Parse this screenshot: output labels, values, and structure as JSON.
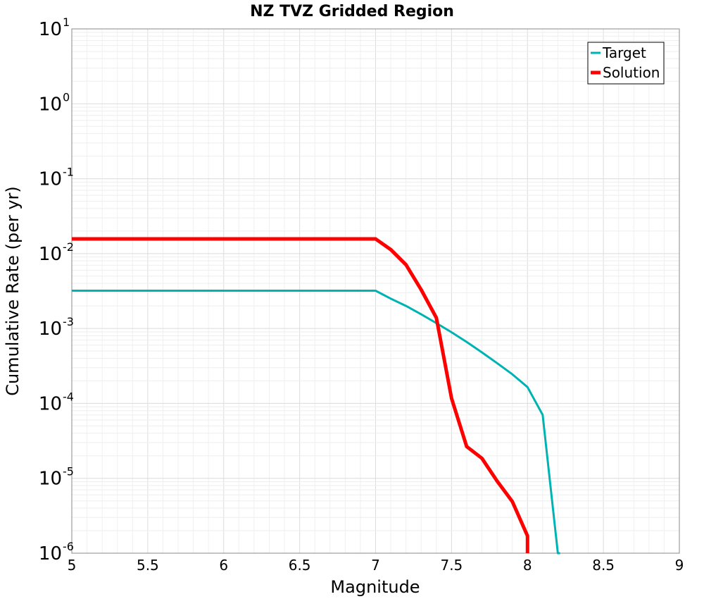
{
  "chart_data": {
    "type": "line",
    "title": "NZ TVZ Gridded Region",
    "xlabel": "Magnitude",
    "ylabel": "Cumulative Rate (per yr)",
    "xlim": [
      5,
      9
    ],
    "ylim_log10": [
      -6,
      1
    ],
    "yscale": "log",
    "grid": true,
    "legend_position": "top-right",
    "x_ticks": [
      5,
      5.5,
      6,
      6.5,
      7,
      7.5,
      8,
      8.5,
      9
    ],
    "x_tick_labels": [
      "5",
      "5.5",
      "6",
      "6.5",
      "7",
      "7.5",
      "8",
      "8.5",
      "9"
    ],
    "y_ticks": [
      {
        "base": "10",
        "exp": "1",
        "value": 10
      },
      {
        "base": "10",
        "exp": "0",
        "value": 1
      },
      {
        "base": "10",
        "exp": "-1",
        "value": 0.1
      },
      {
        "base": "10",
        "exp": "-2",
        "value": 0.01
      },
      {
        "base": "10",
        "exp": "-3",
        "value": 0.001
      },
      {
        "base": "10",
        "exp": "-4",
        "value": 0.0001
      },
      {
        "base": "10",
        "exp": "-5",
        "value": 1e-05
      },
      {
        "base": "10",
        "exp": "-6",
        "value": 1e-06
      }
    ],
    "series": [
      {
        "name": "Target",
        "color": "#00b3b3",
        "x": [
          5.0,
          7.0,
          7.1,
          7.2,
          7.3,
          7.4,
          7.5,
          7.6,
          7.7,
          7.8,
          7.9,
          8.0,
          8.1,
          8.2,
          8.215
        ],
        "y": [
          0.0032,
          0.0032,
          0.0025,
          0.002,
          0.00155,
          0.00118,
          0.00089,
          0.00066,
          0.00048,
          0.000345,
          0.000245,
          0.000165,
          7.05e-05,
          1e-06,
          1e-06
        ]
      },
      {
        "name": "Solution",
        "color": "#ff0000",
        "x": [
          5.0,
          7.0,
          7.1,
          7.2,
          7.3,
          7.4,
          7.5,
          7.6,
          7.7,
          7.8,
          7.9,
          8.0,
          8.0
        ],
        "y": [
          0.0157,
          0.0157,
          0.0113,
          0.0071,
          0.0033,
          0.00139,
          0.000117,
          2.65e-05,
          1.85e-05,
          9.2e-06,
          4.9e-06,
          1.7e-06,
          1e-06
        ]
      }
    ]
  }
}
